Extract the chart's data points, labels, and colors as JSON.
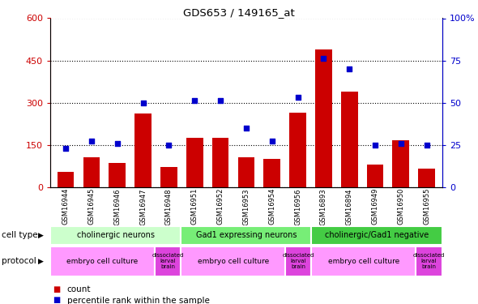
{
  "title": "GDS653 / 149165_at",
  "samples": [
    "GSM16944",
    "GSM16945",
    "GSM16946",
    "GSM16947",
    "GSM16948",
    "GSM16951",
    "GSM16952",
    "GSM16953",
    "GSM16954",
    "GSM16956",
    "GSM16893",
    "GSM16894",
    "GSM16949",
    "GSM16950",
    "GSM16955"
  ],
  "counts": [
    55,
    105,
    85,
    260,
    70,
    175,
    175,
    105,
    100,
    265,
    490,
    340,
    80,
    165,
    65
  ],
  "percentiles": [
    23,
    27,
    26,
    50,
    25,
    51,
    51,
    35,
    27,
    53,
    76,
    70,
    25,
    26,
    25
  ],
  "ylim_left": [
    0,
    600
  ],
  "ylim_right": [
    0,
    100
  ],
  "yticks_left": [
    0,
    150,
    300,
    450,
    600
  ],
  "yticks_right": [
    0,
    25,
    50,
    75,
    100
  ],
  "bar_color": "#cc0000",
  "scatter_color": "#0000cc",
  "cell_types": [
    {
      "label": "cholinergic neurons",
      "start": 0,
      "end": 5
    },
    {
      "label": "Gad1 expressing neurons",
      "start": 5,
      "end": 10
    },
    {
      "label": "cholinergic/Gad1 negative",
      "start": 10,
      "end": 15
    }
  ],
  "cell_type_colors": [
    "#ccffcc",
    "#77ee77",
    "#44cc44"
  ],
  "protocols": [
    {
      "label": "embryo cell culture",
      "start": 0,
      "end": 4
    },
    {
      "label": "dissociated\nlarval\nbrain",
      "start": 4,
      "end": 5
    },
    {
      "label": "embryo cell culture",
      "start": 5,
      "end": 9
    },
    {
      "label": "dissociated\nlarval\nbrain",
      "start": 9,
      "end": 10
    },
    {
      "label": "embryo cell culture",
      "start": 10,
      "end": 14
    },
    {
      "label": "dissociated\nlarval\nbrain",
      "start": 14,
      "end": 15
    }
  ],
  "protocol_color_normal": "#ff99ff",
  "protocol_color_dissoc": "#dd44dd",
  "cell_type_row_label": "cell type",
  "protocol_row_label": "protocol",
  "legend_count_label": "count",
  "legend_percentile_label": "percentile rank within the sample",
  "tick_label_color_left": "#cc0000",
  "tick_label_color_right": "#0000cc"
}
